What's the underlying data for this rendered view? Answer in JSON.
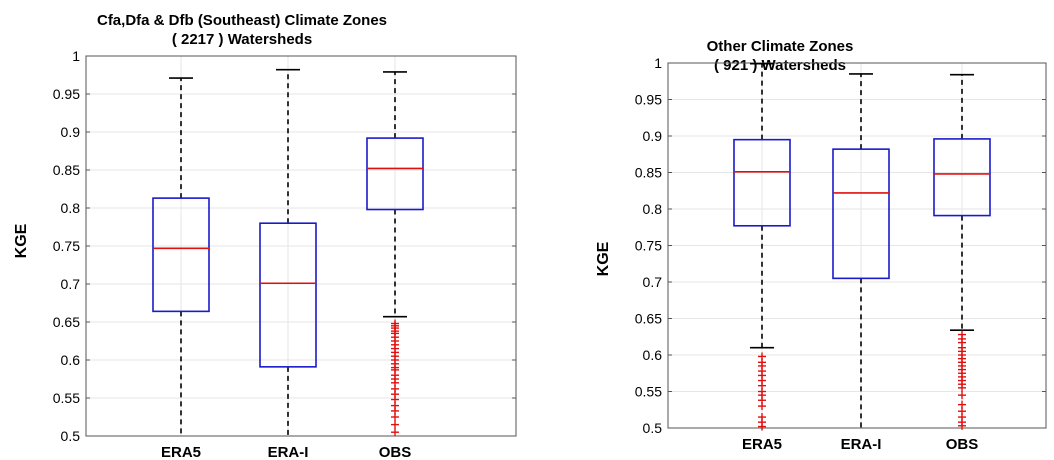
{
  "chart_data": [
    {
      "type": "box",
      "title_lines": [
        "Cfa,Dfa & Dfb (Southeast)  Climate Zones",
        "( 2217 ) Watersheds"
      ],
      "ylabel": "KGE",
      "ylim": [
        0.5,
        1.0
      ],
      "yticks": [
        0.5,
        0.55,
        0.6,
        0.65,
        0.7,
        0.75,
        0.8,
        0.85,
        0.9,
        0.95,
        1
      ],
      "ytick_labels": [
        "0.5",
        "0.55",
        "0.6",
        "0.65",
        "0.7",
        "0.75",
        "0.8",
        "0.85",
        "0.9",
        "0.95",
        "1"
      ],
      "grid": true,
      "categories": [
        "ERA5",
        "ERA-I",
        "OBS"
      ],
      "boxes": [
        {
          "name": "ERA5",
          "whisker_low": 0.5,
          "q1": 0.664,
          "median": 0.747,
          "q3": 0.813,
          "whisker_high": 0.971,
          "outliers": []
        },
        {
          "name": "ERA-I",
          "whisker_low": 0.5,
          "q1": 0.591,
          "median": 0.701,
          "q3": 0.78,
          "whisker_high": 0.982,
          "outliers": []
        },
        {
          "name": "OBS",
          "whisker_low": 0.657,
          "q1": 0.798,
          "median": 0.852,
          "q3": 0.892,
          "whisker_high": 0.979,
          "outliers": [
            0.648,
            0.645,
            0.642,
            0.638,
            0.635,
            0.63,
            0.625,
            0.62,
            0.615,
            0.61,
            0.605,
            0.6,
            0.595,
            0.59,
            0.587,
            0.58,
            0.575,
            0.57,
            0.562,
            0.555,
            0.548,
            0.54,
            0.533,
            0.525,
            0.515,
            0.505
          ]
        }
      ],
      "colors": {
        "box": "#1a1acc",
        "median": "#e01010",
        "whisker": "#000000",
        "outlier": "#e01010",
        "grid": "#e6e6e6"
      }
    },
    {
      "type": "box",
      "title_lines": [
        "Other  Climate Zones",
        "( 921 ) Watersheds"
      ],
      "ylabel": "KGE",
      "ylim": [
        0.5,
        1.0
      ],
      "yticks": [
        0.5,
        0.55,
        0.6,
        0.65,
        0.7,
        0.75,
        0.8,
        0.85,
        0.9,
        0.95,
        1
      ],
      "ytick_labels": [
        "0.5",
        "0.55",
        "0.6",
        "0.65",
        "0.7",
        "0.75",
        "0.8",
        "0.85",
        "0.9",
        "0.95",
        "1"
      ],
      "grid": true,
      "categories": [
        "ERA5",
        "ERA-I",
        "OBS"
      ],
      "boxes": [
        {
          "name": "ERA5",
          "whisker_low": 0.61,
          "q1": 0.777,
          "median": 0.851,
          "q3": 0.895,
          "whisker_high": 0.999,
          "outliers": [
            0.598,
            0.59,
            0.585,
            0.578,
            0.572,
            0.565,
            0.558,
            0.55,
            0.545,
            0.538,
            0.53,
            0.515,
            0.508,
            0.502
          ]
        },
        {
          "name": "ERA-I",
          "whisker_low": 0.5,
          "q1": 0.705,
          "median": 0.822,
          "q3": 0.882,
          "whisker_high": 0.985,
          "outliers": []
        },
        {
          "name": "OBS",
          "whisker_low": 0.634,
          "q1": 0.791,
          "median": 0.848,
          "q3": 0.896,
          "whisker_high": 0.984,
          "outliers": [
            0.628,
            0.622,
            0.617,
            0.61,
            0.605,
            0.6,
            0.595,
            0.59,
            0.585,
            0.58,
            0.575,
            0.57,
            0.565,
            0.56,
            0.555,
            0.545,
            0.532,
            0.523,
            0.515,
            0.508,
            0.503
          ]
        }
      ],
      "colors": {
        "box": "#1a1acc",
        "median": "#e01010",
        "whisker": "#000000",
        "outlier": "#e01010",
        "grid": "#e6e6e6"
      }
    }
  ]
}
